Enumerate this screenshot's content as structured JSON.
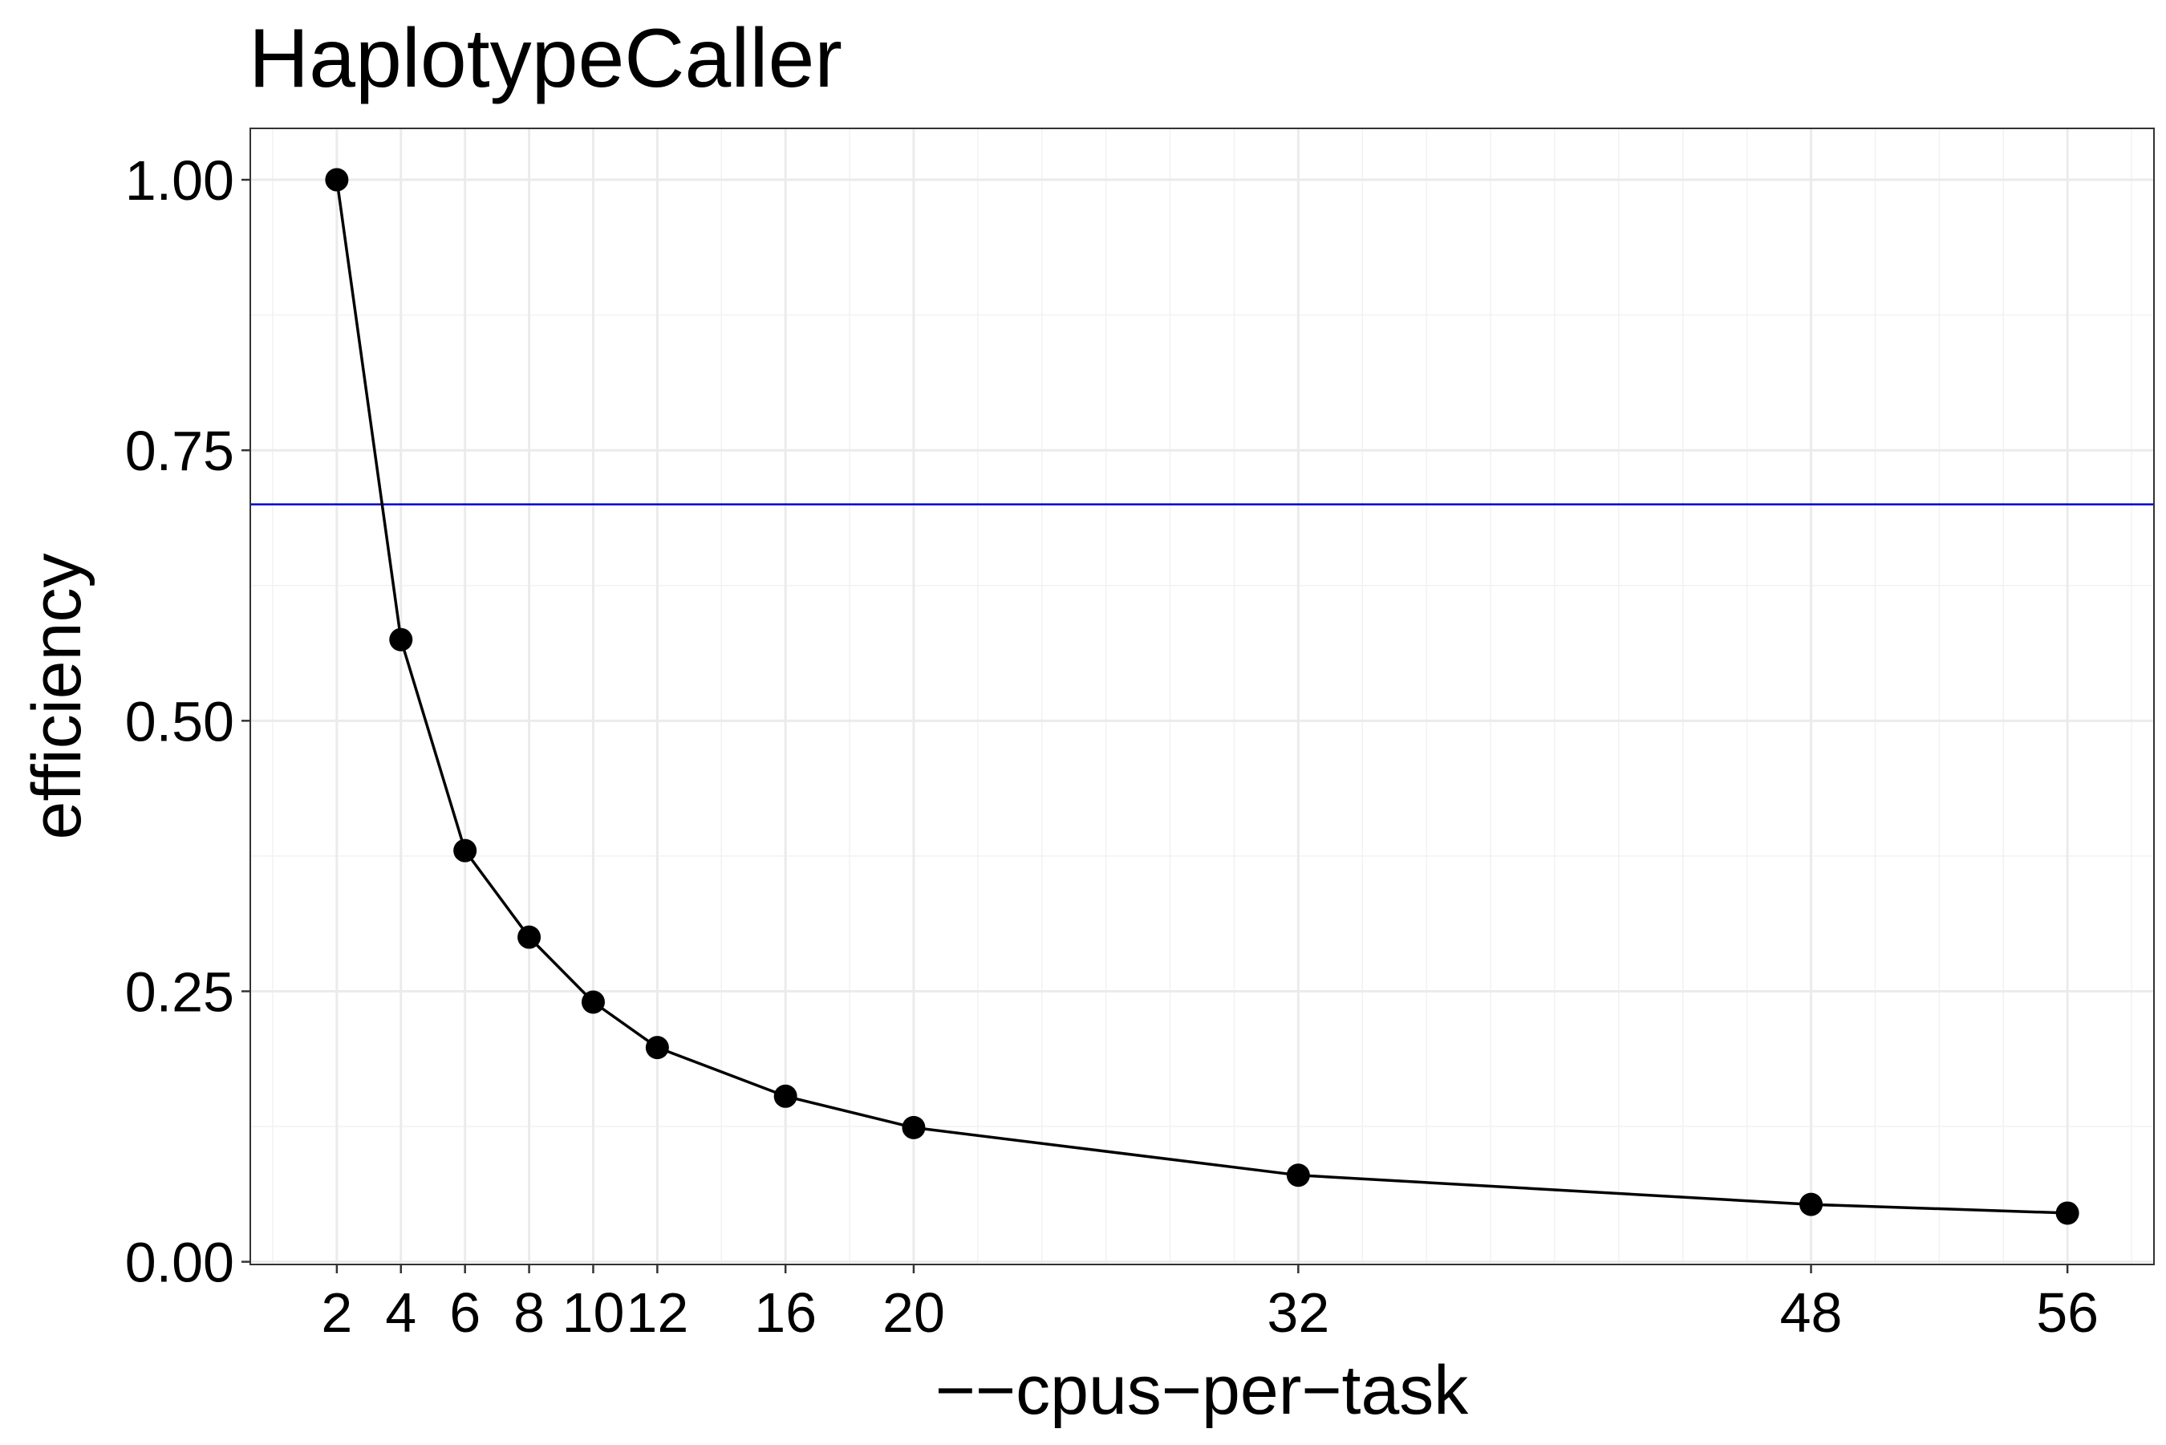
{
  "chart_data": {
    "type": "line",
    "title": "HaplotypeCaller",
    "xlabel": "−−cpus−per−task",
    "ylabel": "efficiency",
    "x": [
      2,
      4,
      6,
      8,
      10,
      12,
      16,
      20,
      32,
      48,
      56
    ],
    "series": [
      {
        "values": [
          1.0,
          0.575,
          0.38,
          0.3,
          0.24,
          0.198,
          0.153,
          0.124,
          0.08,
          0.053,
          0.045
        ]
      }
    ],
    "reference_line": {
      "y": 0.7,
      "color": "#0000cc"
    },
    "x_ticks": [
      2,
      4,
      6,
      8,
      10,
      12,
      16,
      20,
      32,
      48,
      56
    ],
    "y_ticks": [
      "0.00",
      "0.25",
      "0.50",
      "0.75",
      "1.00"
    ],
    "xlim": [
      -0.7,
      58.7
    ],
    "ylim": [
      -0.0025,
      1.0475
    ],
    "grid": true,
    "line_color": "#000000",
    "point_color": "#000000"
  }
}
